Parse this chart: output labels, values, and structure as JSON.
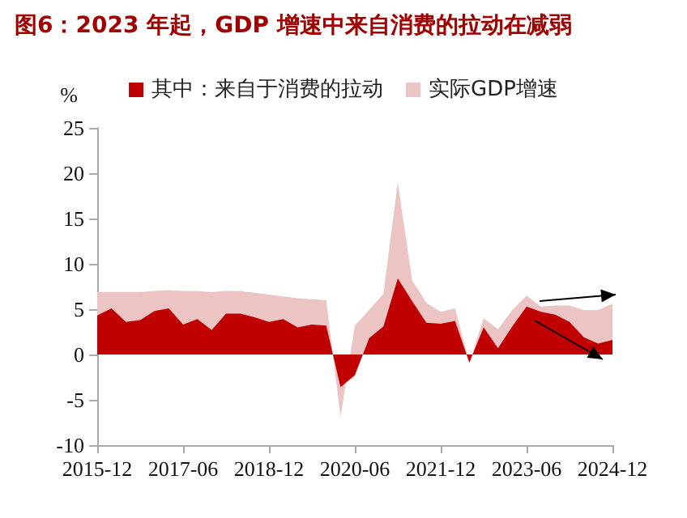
{
  "chart_data": {
    "type": "area",
    "title": "图6：2023 年起，GDP 增速中来自消费的拉动在减弱",
    "ylabel": "%",
    "categories": [
      "2015-12",
      null,
      null,
      null,
      null,
      null,
      "2017-06",
      null,
      null,
      null,
      null,
      null,
      "2018-12",
      null,
      null,
      null,
      null,
      null,
      "2020-06",
      null,
      null,
      null,
      null,
      null,
      "2021-12",
      null,
      null,
      null,
      null,
      null,
      "2023-06",
      null,
      null,
      null,
      null,
      null,
      "2024-12"
    ],
    "series": [
      {
        "name": "其中：来自于消费的拉动",
        "color": "#c00000",
        "values": [
          4.3,
          5.1,
          3.6,
          3.8,
          4.8,
          5.1,
          3.3,
          3.9,
          2.7,
          4.5,
          4.5,
          4.1,
          3.6,
          3.9,
          3.0,
          3.3,
          3.2,
          -3.6,
          -2.3,
          1.8,
          3.1,
          8.4,
          5.9,
          3.5,
          3.4,
          3.7,
          -0.9,
          3.0,
          0.7,
          3.1,
          5.3,
          4.7,
          4.4,
          3.6,
          1.9,
          1.2,
          1.6
        ]
      },
      {
        "name": "实际GDP增速",
        "color": "#ecc4c4",
        "values": [
          6.9,
          6.9,
          6.9,
          6.9,
          7.0,
          7.1,
          7.0,
          7.0,
          6.9,
          7.0,
          7.0,
          6.8,
          6.6,
          6.4,
          6.2,
          6.1,
          6.0,
          -6.9,
          3.2,
          4.9,
          6.7,
          19.0,
          8.2,
          5.7,
          4.7,
          5.1,
          -0.9,
          4.0,
          2.8,
          4.9,
          6.5,
          5.3,
          5.4,
          5.4,
          4.9,
          4.9,
          5.6
        ]
      }
    ],
    "ylim": [
      -10,
      25
    ],
    "yticks": [
      -10,
      -5,
      0,
      5,
      10,
      15,
      20,
      25
    ],
    "grid": false,
    "legend": "top"
  }
}
